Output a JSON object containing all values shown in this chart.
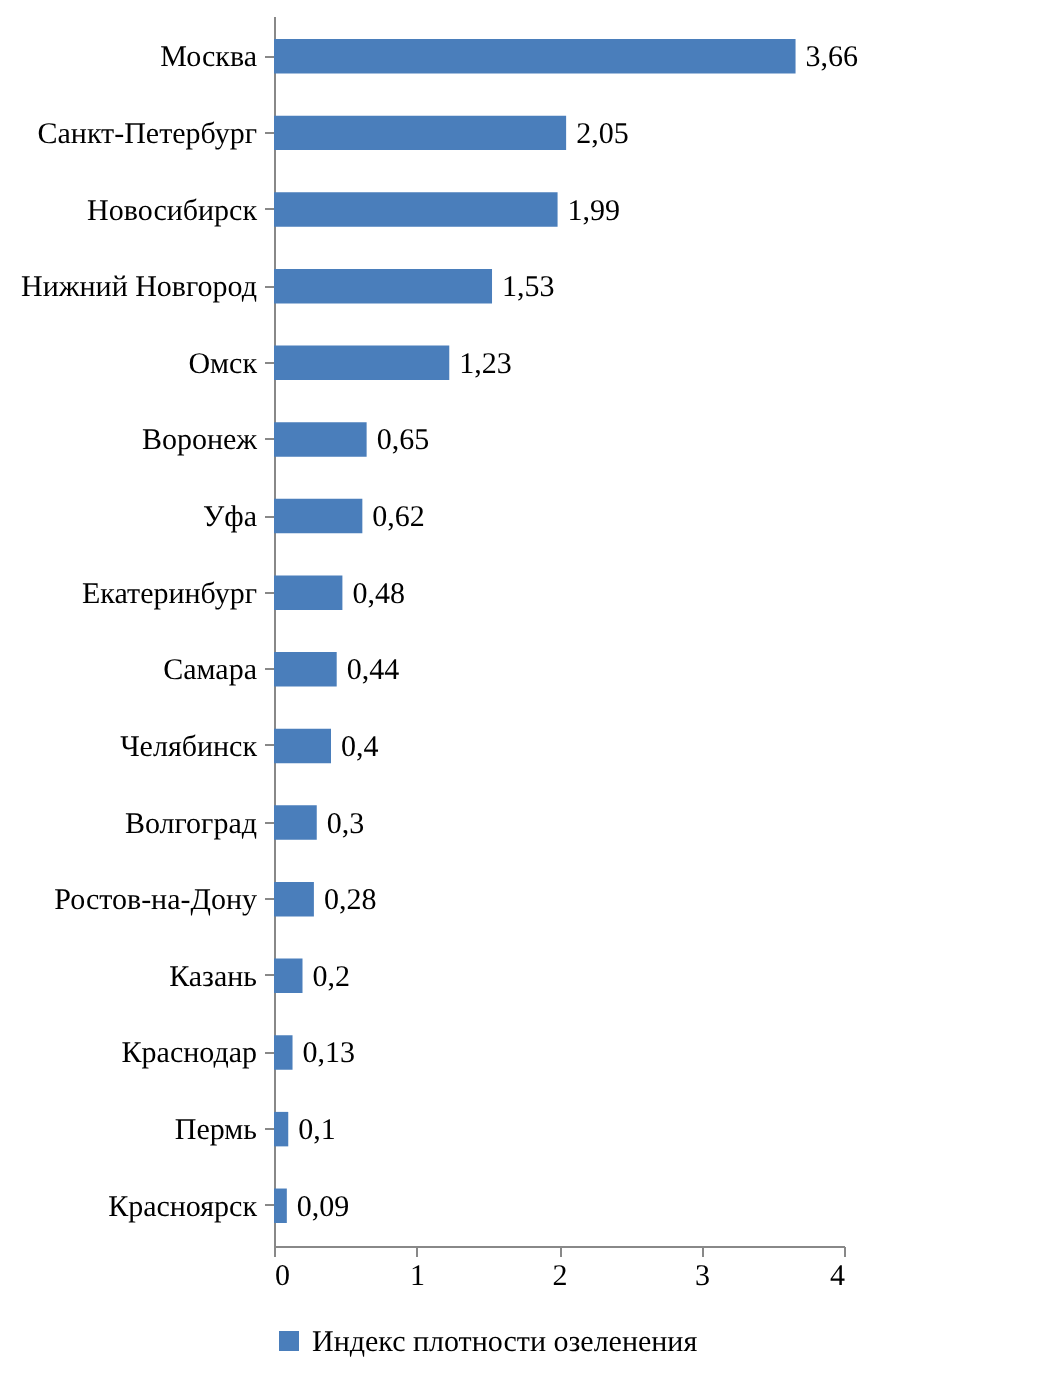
{
  "chart_data": {
    "type": "bar",
    "orientation": "horizontal",
    "categories": [
      "Москва",
      "Санкт-Петербург",
      "Новосибирск",
      "Нижний Новгород",
      "Омск",
      "Воронеж",
      "Уфа",
      "Екатеринбург",
      "Самара",
      "Челябинск",
      "Волгоград",
      "Ростов-на-Дону",
      "Казань",
      "Краснодар",
      "Пермь",
      "Красноярск"
    ],
    "series": [
      {
        "name": "Индекс плотности озеленения",
        "color": "#4a7ebb",
        "values": [
          3.66,
          2.05,
          1.99,
          1.53,
          1.23,
          0.65,
          0.62,
          0.48,
          0.44,
          0.4,
          0.3,
          0.28,
          0.2,
          0.13,
          0.1,
          0.09
        ],
        "value_labels": [
          "3,66",
          "2,05",
          "1,99",
          "1,53",
          "1,23",
          "0,65",
          "0,62",
          "0,48",
          "0,44",
          "0,4",
          "0,3",
          "0,28",
          "0,2",
          "0,13",
          "0,1",
          "0,09"
        ]
      }
    ],
    "xlim": [
      0,
      4
    ],
    "xticks": [
      0,
      1,
      2,
      3,
      4
    ],
    "legend": "bottom"
  }
}
